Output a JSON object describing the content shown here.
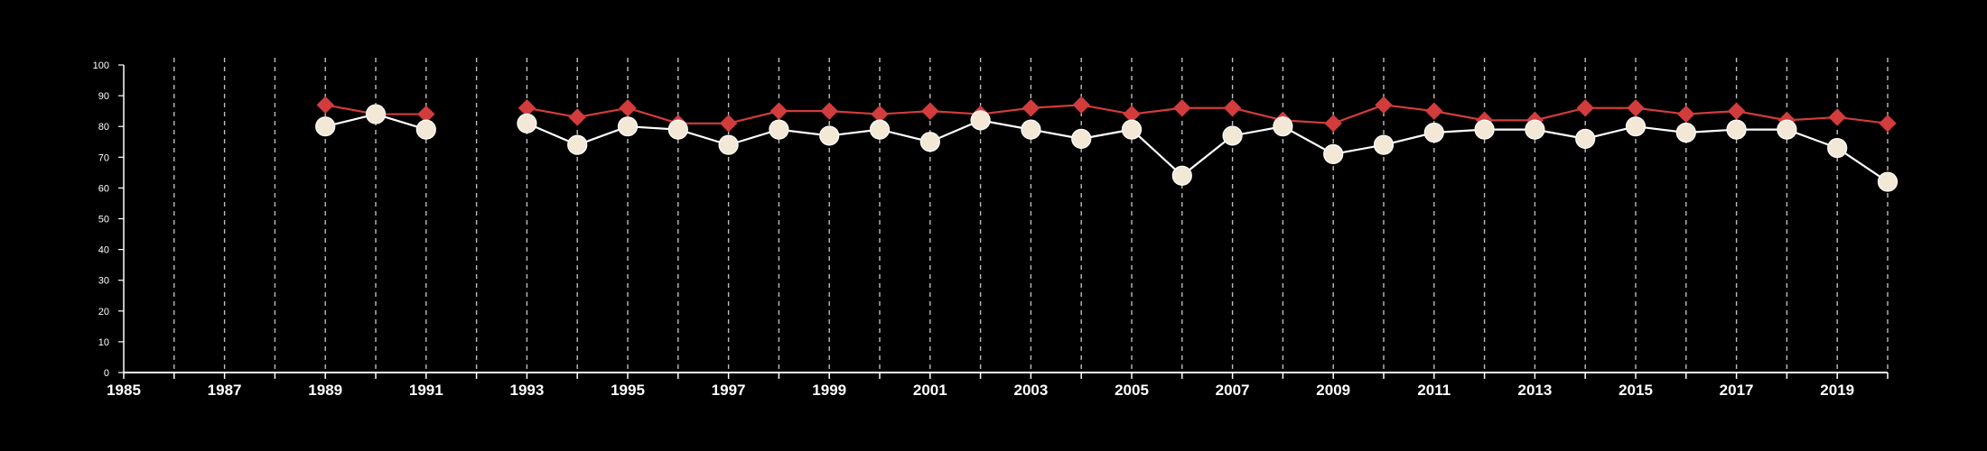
{
  "chart_data": {
    "type": "line",
    "title": "",
    "xlabel": "",
    "ylabel": "",
    "xlim": [
      1985,
      2020
    ],
    "ylim": [
      0,
      100
    ],
    "x_ticks": [
      1985,
      1987,
      1989,
      1991,
      1993,
      1995,
      1997,
      1999,
      2001,
      2003,
      2005,
      2007,
      2009,
      2011,
      2013,
      2015,
      2017,
      2019
    ],
    "y_ticks": [
      0,
      10,
      20,
      30,
      40,
      50,
      60,
      70,
      80,
      90,
      100
    ],
    "x_tick_labels": [
      "1985",
      "1987",
      "1989",
      "1991",
      "1993",
      "1995",
      "1997",
      "1999",
      "2001",
      "2003",
      "2005",
      "2007",
      "2009",
      "2011",
      "2013",
      "2015",
      "2017",
      "2019"
    ],
    "y_tick_labels": [
      "0",
      "10",
      "20",
      "30",
      "40",
      "50",
      "60",
      "70",
      "80",
      "90",
      "100"
    ],
    "grid": "vertical dashed lines at every year",
    "legend": "none",
    "series": [
      {
        "marker": "diamond",
        "color": "#d23c3c",
        "points": [
          [
            1989,
            87
          ],
          [
            1990,
            84
          ],
          [
            1991,
            84
          ],
          [
            1993,
            86
          ],
          [
            1994,
            83
          ],
          [
            1995,
            86
          ],
          [
            1996,
            81
          ],
          [
            1997,
            81
          ],
          [
            1998,
            85
          ],
          [
            1999,
            85
          ],
          [
            2000,
            84
          ],
          [
            2001,
            85
          ],
          [
            2002,
            84
          ],
          [
            2003,
            86
          ],
          [
            2004,
            87
          ],
          [
            2005,
            84
          ],
          [
            2006,
            86
          ],
          [
            2007,
            86
          ],
          [
            2008,
            82
          ],
          [
            2009,
            81
          ],
          [
            2010,
            87
          ],
          [
            2011,
            85
          ],
          [
            2012,
            82
          ],
          [
            2013,
            82
          ],
          [
            2014,
            86
          ],
          [
            2015,
            86
          ],
          [
            2016,
            84
          ],
          [
            2017,
            85
          ],
          [
            2018,
            82
          ],
          [
            2019,
            83
          ],
          [
            2020,
            81
          ]
        ]
      },
      {
        "marker": "circle",
        "color": "#ffffff",
        "fill": "#f3e7d6",
        "points": [
          [
            1989,
            80
          ],
          [
            1990,
            84
          ],
          [
            1991,
            79
          ],
          [
            1993,
            81
          ],
          [
            1994,
            74
          ],
          [
            1995,
            80
          ],
          [
            1996,
            79
          ],
          [
            1997,
            74
          ],
          [
            1998,
            79
          ],
          [
            1999,
            77
          ],
          [
            2000,
            79
          ],
          [
            2001,
            75
          ],
          [
            2002,
            82
          ],
          [
            2003,
            79
          ],
          [
            2004,
            76
          ],
          [
            2005,
            79
          ],
          [
            2006,
            64
          ],
          [
            2007,
            77
          ],
          [
            2008,
            80
          ],
          [
            2009,
            71
          ],
          [
            2010,
            74
          ],
          [
            2011,
            78
          ],
          [
            2012,
            79
          ],
          [
            2013,
            79
          ],
          [
            2014,
            76
          ],
          [
            2015,
            80
          ],
          [
            2016,
            78
          ],
          [
            2017,
            79
          ],
          [
            2018,
            79
          ],
          [
            2019,
            73
          ],
          [
            2020,
            62
          ]
        ]
      }
    ]
  }
}
